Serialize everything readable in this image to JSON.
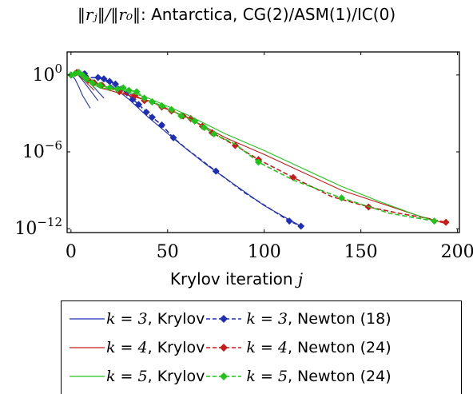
{
  "title": {
    "norm_expr": "‖rⱼ‖/‖r₀‖",
    "text": ": Antarctica, CG(2)/ASM(1)/IC(0)"
  },
  "colors": {
    "k3": "#1f2fb5",
    "k4": "#c8191b",
    "k5": "#22c41c"
  },
  "chart_data": {
    "type": "line",
    "title": "‖r_j‖/‖r_0‖: Antarctica, CG(2)/ASM(1)/IC(0)",
    "xlabel": "Krylov iteration j",
    "ylabel": "",
    "x_ticks": [
      "0",
      "50",
      "100",
      "150",
      "200"
    ],
    "x_tick_values": [
      0,
      50,
      100,
      150,
      200
    ],
    "y_ticks": [
      "10^0",
      "10^-6",
      "10^-12"
    ],
    "y_tick_values": [
      0,
      -6,
      -12
    ],
    "xlim": [
      -2,
      201
    ],
    "y_scale": "log",
    "ylim_log10": [
      -12.3,
      1.8
    ],
    "grid": false,
    "legend_position": "below",
    "series": [
      {
        "name": "k = 3, Krylov",
        "style": "solid",
        "color_key": "k3",
        "segments": [
          [
            [
              0,
              0.0
            ],
            [
              2,
              -0.3
            ],
            [
              4,
              -0.9
            ],
            [
              6,
              -1.6
            ],
            [
              8,
              -2.1
            ],
            [
              10,
              -2.6
            ]
          ],
          [
            [
              2,
              0.3
            ],
            [
              6,
              -0.4
            ],
            [
              10,
              -1.2
            ],
            [
              14,
              -2.0
            ]
          ],
          [
            [
              4,
              0.2
            ],
            [
              9,
              -0.5
            ],
            [
              14,
              -1.3
            ],
            [
              17,
              -1.8
            ]
          ],
          [
            [
              14,
              0.0
            ],
            [
              30,
              -1.9
            ],
            [
              40,
              -3.3
            ],
            [
              55,
              -5.2
            ],
            [
              70,
              -7.0
            ],
            [
              85,
              -8.6
            ],
            [
              100,
              -10.2
            ],
            [
              113,
              -11.3
            ],
            [
              119,
              -11.8
            ]
          ]
        ]
      },
      {
        "name": "k = 3, Newton (18)",
        "style": "dashed",
        "color_key": "k3",
        "points": [
          [
            0,
            0.0
          ],
          [
            2,
            0.1
          ],
          [
            4,
            0.2
          ],
          [
            7,
            0.1
          ],
          [
            10,
            -0.2
          ],
          [
            14,
            -0.2
          ],
          [
            17,
            -0.3
          ],
          [
            20,
            -0.5
          ],
          [
            23,
            -0.7
          ],
          [
            26,
            -1.1
          ],
          [
            29,
            -1.4
          ],
          [
            32,
            -1.9
          ],
          [
            35,
            -2.3
          ],
          [
            39,
            -2.9
          ],
          [
            42,
            -3.3
          ],
          [
            47,
            -3.9
          ],
          [
            53,
            -4.9
          ],
          [
            60,
            -5.8
          ],
          [
            75,
            -7.5
          ],
          [
            90,
            -9.2
          ],
          [
            113,
            -11.4
          ],
          [
            119,
            -11.8
          ]
        ],
        "markers_x": [
          0,
          4,
          7,
          14,
          17,
          20,
          23,
          26,
          29,
          32,
          35,
          39,
          42,
          47,
          53,
          75,
          113,
          119
        ]
      },
      {
        "name": "k = 4, Krylov",
        "style": "solid",
        "color_key": "k4",
        "segments": [
          [
            [
              0,
              0.0
            ],
            [
              3,
              0.2
            ],
            [
              6,
              -0.3
            ],
            [
              10,
              -0.6
            ],
            [
              15,
              -1.0
            ],
            [
              25,
              -1.4
            ],
            [
              40,
              -2.0
            ],
            [
              60,
              -3.3
            ],
            [
              80,
              -4.9
            ],
            [
              100,
              -6.2
            ],
            [
              120,
              -7.6
            ],
            [
              140,
              -9.0
            ],
            [
              160,
              -10.0
            ],
            [
              180,
              -11.0
            ],
            [
              194,
              -11.6
            ]
          ],
          [
            [
              4,
              0.1
            ],
            [
              8,
              -0.6
            ],
            [
              12,
              -1.2
            ]
          ]
        ]
      },
      {
        "name": "k = 4, Newton (24)",
        "style": "dashed",
        "color_key": "k4",
        "points": [
          [
            0,
            0.0
          ],
          [
            3,
            0.2
          ],
          [
            6,
            0.0
          ],
          [
            9,
            -0.4
          ],
          [
            12,
            -0.6
          ],
          [
            16,
            -0.8
          ],
          [
            25,
            -1.3
          ],
          [
            33,
            -1.6
          ],
          [
            38,
            -2.0
          ],
          [
            42,
            -2.1
          ],
          [
            47,
            -2.5
          ],
          [
            52,
            -2.8
          ],
          [
            58,
            -3.2
          ],
          [
            62,
            -3.4
          ],
          [
            68,
            -4.0
          ],
          [
            73,
            -4.5
          ],
          [
            85,
            -5.5
          ],
          [
            97,
            -6.6
          ],
          [
            115,
            -8.0
          ],
          [
            135,
            -9.5
          ],
          [
            154,
            -10.3
          ],
          [
            170,
            -10.8
          ],
          [
            185,
            -11.2
          ],
          [
            194,
            -11.5
          ]
        ],
        "markers_x": [
          0,
          3,
          6,
          9,
          12,
          16,
          25,
          33,
          38,
          42,
          47,
          52,
          58,
          62,
          68,
          73,
          85,
          97,
          115,
          154,
          194
        ]
      },
      {
        "name": "k = 5, Krylov",
        "style": "solid",
        "color_key": "k5",
        "segments": [
          [
            [
              0,
              0.0
            ],
            [
              3,
              0.2
            ],
            [
              8,
              -0.4
            ],
            [
              15,
              -1.0
            ],
            [
              25,
              -1.1
            ],
            [
              40,
              -1.8
            ],
            [
              60,
              -3.1
            ],
            [
              80,
              -4.6
            ],
            [
              100,
              -5.9
            ],
            [
              120,
              -7.3
            ],
            [
              140,
              -8.7
            ],
            [
              160,
              -9.9
            ],
            [
              180,
              -11.0
            ],
            [
              188,
              -11.4
            ]
          ],
          [
            [
              5,
              0.1
            ],
            [
              9,
              -0.5
            ],
            [
              13,
              -1.1
            ]
          ]
        ]
      },
      {
        "name": "k = 5, Newton (24)",
        "style": "dashed",
        "color_key": "k5",
        "points": [
          [
            0,
            0.0
          ],
          [
            2,
            0.1
          ],
          [
            4,
            0.2
          ],
          [
            6,
            0.0
          ],
          [
            8,
            -0.3
          ],
          [
            11,
            -0.6
          ],
          [
            15,
            -0.8
          ],
          [
            20,
            -1.0
          ],
          [
            24,
            -1.1
          ],
          [
            27,
            -1.0
          ],
          [
            30,
            -1.2
          ],
          [
            34,
            -1.3
          ],
          [
            38,
            -1.8
          ],
          [
            42,
            -2.1
          ],
          [
            47,
            -2.4
          ],
          [
            52,
            -2.7
          ],
          [
            57,
            -3.2
          ],
          [
            64,
            -3.6
          ],
          [
            69,
            -4.1
          ],
          [
            74,
            -4.6
          ],
          [
            85,
            -5.4
          ],
          [
            97,
            -6.8
          ],
          [
            115,
            -8.2
          ],
          [
            140,
            -9.6
          ],
          [
            165,
            -10.8
          ],
          [
            188,
            -11.4
          ]
        ],
        "markers_x": [
          0,
          2,
          4,
          6,
          8,
          11,
          15,
          20,
          24,
          27,
          30,
          34,
          38,
          42,
          47,
          52,
          57,
          64,
          69,
          74,
          97,
          140,
          188
        ]
      }
    ]
  },
  "legend": {
    "rows": [
      {
        "color_key": "k3",
        "krylov": {
          "math": "k = 3",
          "label": ", Krylov"
        },
        "newton": {
          "math": "k = 3",
          "label": ", Newton (18)"
        }
      },
      {
        "color_key": "k4",
        "krylov": {
          "math": "k = 4",
          "label": ", Krylov"
        },
        "newton": {
          "math": "k = 4",
          "label": ", Newton (24)"
        }
      },
      {
        "color_key": "k5",
        "krylov": {
          "math": "k = 5",
          "label": ", Krylov"
        },
        "newton": {
          "math": "k = 5",
          "label": ", Newton (24)"
        }
      }
    ]
  },
  "xlabel": {
    "text": "Krylov iteration ",
    "var": "j"
  }
}
